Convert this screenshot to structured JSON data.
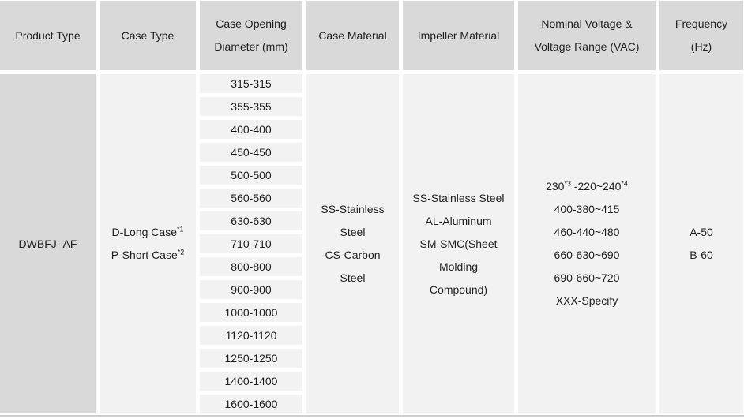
{
  "colors": {
    "header_bg": "#d9d9d9",
    "product_cell_bg": "#d9d9d9",
    "body_cell_bg": "#f2f2f2",
    "bottom_border": "#d0cece",
    "text": "#1f1f1f"
  },
  "table": {
    "headers": {
      "product_type": "Product Type",
      "case_type": "Case Type",
      "case_opening_diameter": "Case Opening Diameter (mm)",
      "case_material": "Case Material",
      "impeller_material": "Impeller Material",
      "nominal_voltage": "Nominal Voltage & Voltage Range (VAC)",
      "frequency": "Frequency (Hz)"
    },
    "rows": {
      "product_type": "DWBFJ- AF",
      "case_types": [
        {
          "label": "D-Long Case",
          "marker": "*1"
        },
        {
          "label": "P-Short Case",
          "marker": "*2"
        }
      ],
      "case_opening_diameters": [
        "315-315",
        "355-355",
        "400-400",
        "450-450",
        "500-500",
        "560-560",
        "630-630",
        "710-710",
        "800-800",
        "900-900",
        "1000-1000",
        "1120-1120",
        "1250-1250",
        "1400-1400",
        "1600-1600"
      ],
      "case_materials": [
        "SS-Stainless Steel",
        "CS-Carbon Steel"
      ],
      "impeller_materials": [
        "SS-Stainless Steel",
        "AL-Aluminum",
        "SM-SMC(Sheet Molding Compound)"
      ],
      "voltages": {
        "line1": {
          "part1": "230",
          "marker1": "*3",
          "part2": " -220~240",
          "marker2": "*4"
        },
        "options": [
          "400-380~415",
          "460-440~480",
          "660-630~690",
          "690-660~720",
          "XXX-Specify"
        ]
      },
      "frequencies": [
        "A-50",
        "B-60"
      ]
    }
  }
}
